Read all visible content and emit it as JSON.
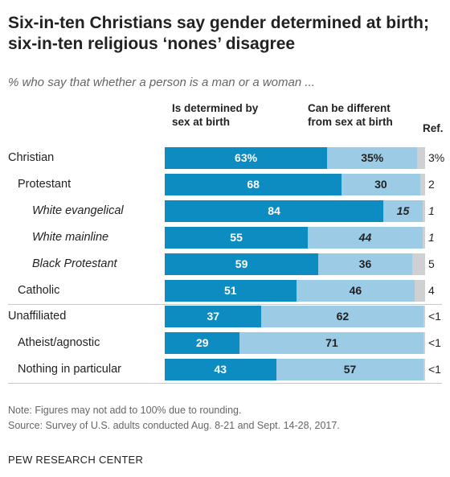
{
  "title": "Six-in-ten Christians say gender determined at birth; six-in-ten religious ‘nones’ disagree",
  "subtitle": "% who say that whether a person is a man or a woman ...",
  "notes": {
    "note": "Note: Figures may not add to 100% due to rounding.",
    "source": "Source: Survey of U.S. adults conducted Aug. 8-21 and Sept. 14-28, 2017."
  },
  "brand": "PEW RESEARCH CENTER",
  "chart_data": {
    "type": "bar",
    "orientation": "horizontal",
    "stacked": true,
    "categories": [
      "Christian",
      "Protestant",
      "White evangelical",
      "White mainline",
      "Black Protestant",
      "Catholic",
      "Unaffiliated",
      "Atheist/agnostic",
      "Nothing in particular"
    ],
    "series": [
      {
        "name": "Is determined by sex at birth",
        "values": [
          63,
          68,
          84,
          55,
          59,
          51,
          37,
          29,
          43
        ],
        "labels": [
          "63%",
          "68",
          "84",
          "55",
          "59",
          "51",
          "37",
          "29",
          "43"
        ],
        "color": "#0c8cc1"
      },
      {
        "name": "Can be different from sex at birth",
        "values": [
          35,
          30,
          15,
          44,
          36,
          46,
          62,
          71,
          57
        ],
        "labels": [
          "35%",
          "30",
          "15",
          "44",
          "36",
          "46",
          "62",
          "71",
          "57"
        ],
        "color": "#9ccbe6"
      },
      {
        "name": "Ref.",
        "values": [
          3,
          2,
          1,
          1,
          5,
          4,
          0.5,
          0.5,
          0.5
        ],
        "labels": [
          "3%",
          "2",
          "1",
          "1",
          "5",
          "4",
          "<1",
          "<1",
          "<1"
        ],
        "color": "#cfd0d1"
      }
    ],
    "xlim": [
      0,
      100
    ]
  }
}
